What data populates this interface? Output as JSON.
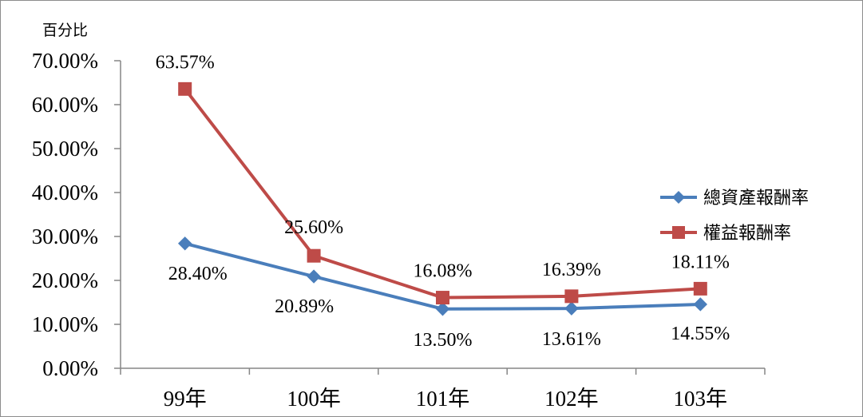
{
  "chart_data": {
    "type": "line",
    "ylabel": "百分比",
    "categories": [
      "99年",
      "100年",
      "101年",
      "102年",
      "103年"
    ],
    "ylim": [
      0,
      70
    ],
    "y_ticks": [
      "0.00%",
      "10.00%",
      "20.00%",
      "30.00%",
      "40.00%",
      "50.00%",
      "60.00%",
      "70.00%"
    ],
    "grid": false,
    "legend_position": "right",
    "series": [
      {
        "name": "總資產報酬率",
        "color": "#4a7ebb",
        "marker": "diamond",
        "values": [
          28.4,
          20.89,
          13.5,
          13.61,
          14.55
        ],
        "labels": [
          "28.40%",
          "20.89%",
          "13.50%",
          "13.61%",
          "14.55%"
        ]
      },
      {
        "name": "權益報酬率",
        "color": "#be4b48",
        "marker": "square",
        "values": [
          63.57,
          25.6,
          16.08,
          16.39,
          18.11
        ],
        "labels": [
          "63.57%",
          "25.60%",
          "16.08%",
          "16.39%",
          "18.11%"
        ]
      }
    ]
  }
}
